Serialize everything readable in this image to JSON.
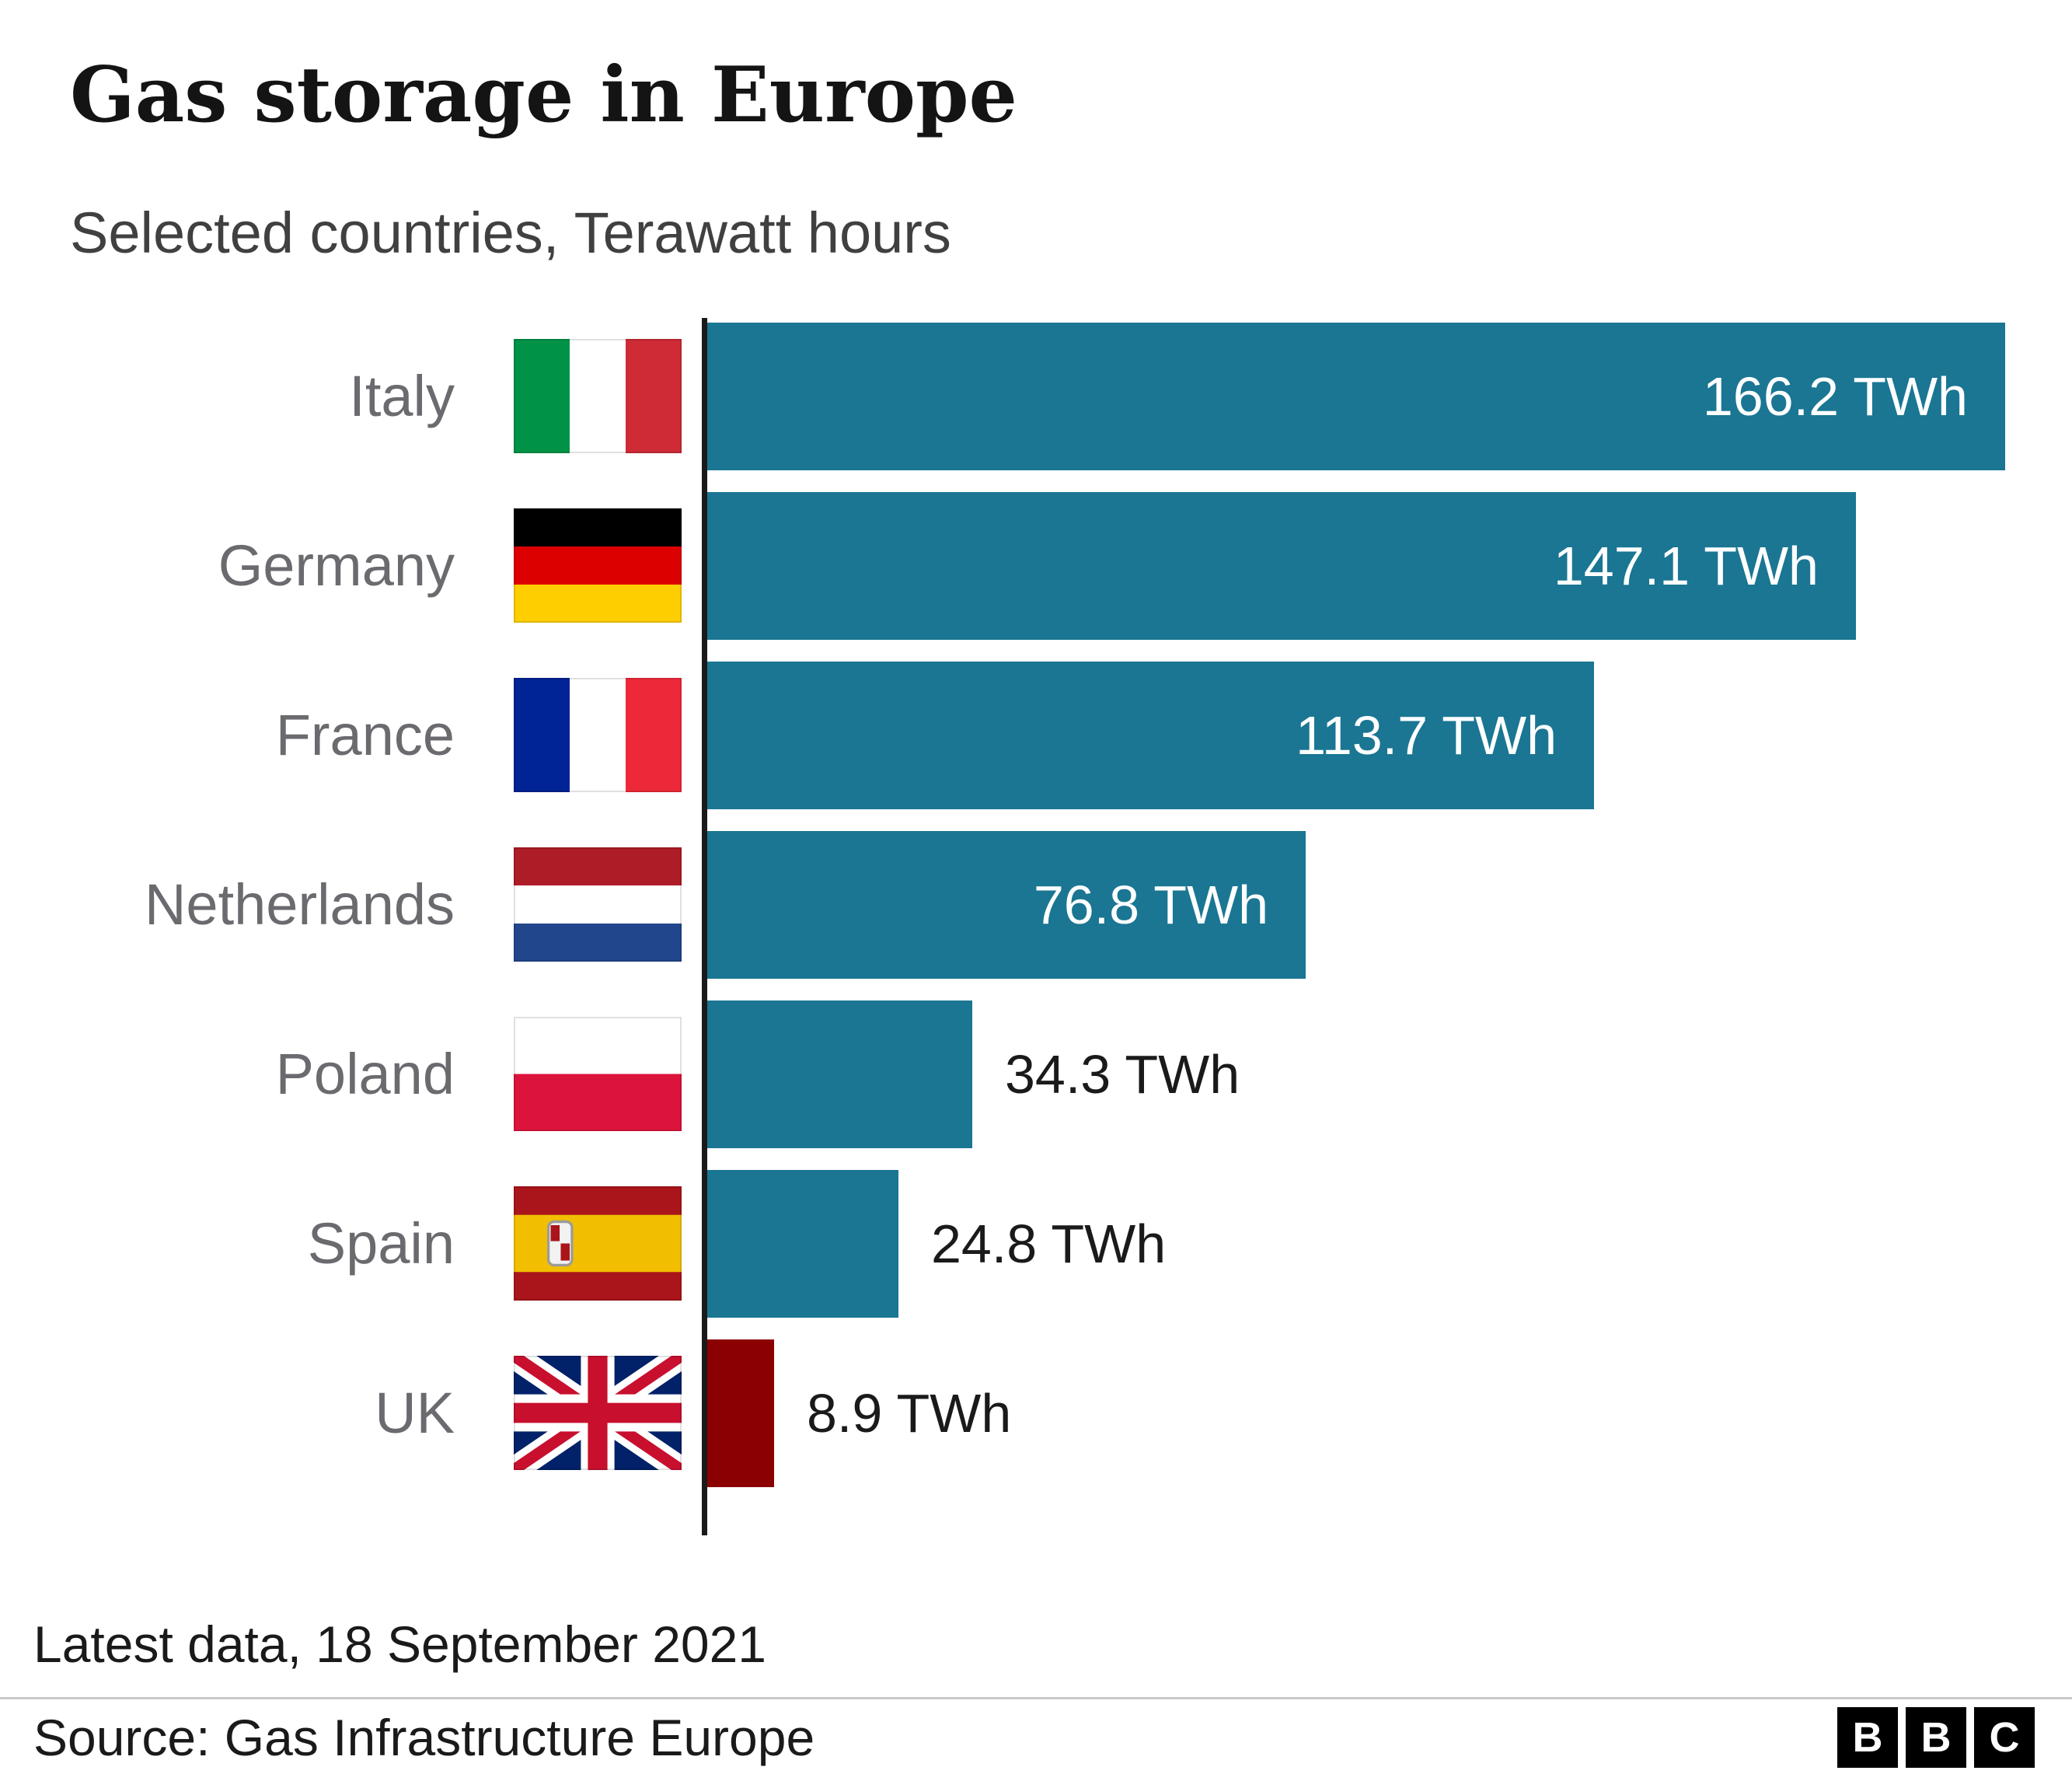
{
  "header": {
    "title": "Gas storage in Europe",
    "subtitle": "Selected countries, Terawatt hours"
  },
  "chart_data": {
    "type": "bar",
    "orientation": "horizontal",
    "title": "Gas storage in Europe",
    "subtitle": "Selected countries, Terawatt hours",
    "unit": "TWh",
    "xlabel": "",
    "ylabel": "",
    "xlim": [
      0,
      170
    ],
    "grid": false,
    "categories": [
      "Italy",
      "Germany",
      "France",
      "Netherlands",
      "Poland",
      "Spain",
      "UK"
    ],
    "values": [
      166.2,
      147.1,
      113.7,
      76.8,
      34.3,
      24.8,
      8.9
    ],
    "value_labels": [
      "166.2 TWh",
      "147.1 TWh",
      "113.7 TWh",
      "76.8 TWh",
      "34.3 TWh",
      "24.8 TWh",
      "8.9 TWh"
    ],
    "flags": [
      "flag-italy",
      "flag-germany",
      "flag-france",
      "flag-netherlands",
      "flag-poland",
      "flag-spain",
      "flag-uk"
    ],
    "bar_colors": [
      "#1A7693",
      "#1A7693",
      "#1A7693",
      "#1A7693",
      "#1A7693",
      "#1A7693",
      "#8B0000"
    ],
    "label_inside": [
      true,
      true,
      true,
      true,
      false,
      false,
      false
    ]
  },
  "footer": {
    "latest": "Latest data, 18 September 2021",
    "source": "Source: Gas Infrastructure Europe",
    "logo_letters": [
      "B",
      "B",
      "C"
    ]
  },
  "colors": {
    "bar_teal": "#1A7693",
    "bar_red": "#8B0000",
    "axis": "#1a1a1a",
    "country_label_gray": "#6a6a6f"
  }
}
